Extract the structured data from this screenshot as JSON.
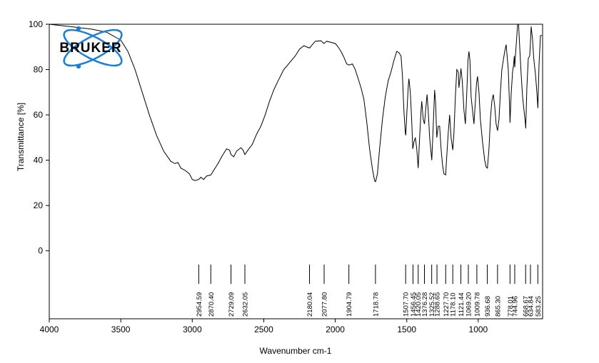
{
  "chart_data": {
    "type": "line",
    "title": "",
    "xlabel": "Wavenumber cm-1",
    "ylabel": "Transmittance [%]",
    "xlim": [
      4000,
      550
    ],
    "ylim": [
      -30,
      100
    ],
    "x_ticks": [
      4000,
      3500,
      3000,
      2500,
      2000,
      1500,
      1000
    ],
    "y_ticks": [
      0,
      20,
      40,
      60,
      80,
      100
    ],
    "grid": false,
    "logo": "BRUKER",
    "peak_labels": [
      "2954.59",
      "2870.40",
      "2729.09",
      "2632.05",
      "2180.04",
      "2077.80",
      "1904.79",
      "1718.78",
      "1507.70",
      "1456.45",
      "1420.05",
      "1376.28",
      "1325.52",
      "1288.65",
      "1227.70",
      "1178.10",
      "1121.44",
      "1069.20",
      "1009.78",
      "936.68",
      "865.30",
      "778.01",
      "744.96",
      "668.67",
      "634.84",
      "583.25"
    ],
    "series": [
      {
        "color": "#000000",
        "points": [
          [
            4000,
            100
          ],
          [
            3900,
            99.3
          ],
          [
            3800,
            98.6
          ],
          [
            3700,
            97.8
          ],
          [
            3600,
            96.5
          ],
          [
            3500,
            93
          ],
          [
            3450,
            88
          ],
          [
            3400,
            80
          ],
          [
            3350,
            70
          ],
          [
            3300,
            60
          ],
          [
            3250,
            51
          ],
          [
            3200,
            44
          ],
          [
            3150,
            39.5
          ],
          [
            3120,
            38.5
          ],
          [
            3100,
            39
          ],
          [
            3080,
            36.5
          ],
          [
            3050,
            35.5
          ],
          [
            3020,
            34
          ],
          [
            3000,
            31.5
          ],
          [
            2980,
            31
          ],
          [
            2954,
            31.5
          ],
          [
            2940,
            32.5
          ],
          [
            2920,
            31.5
          ],
          [
            2900,
            33
          ],
          [
            2870,
            33.5
          ],
          [
            2850,
            35.5
          ],
          [
            2820,
            38.5
          ],
          [
            2790,
            42
          ],
          [
            2760,
            45
          ],
          [
            2740,
            44.5
          ],
          [
            2729,
            42.5
          ],
          [
            2710,
            41.5
          ],
          [
            2690,
            44
          ],
          [
            2660,
            45.5
          ],
          [
            2645,
            44.5
          ],
          [
            2632,
            42.5
          ],
          [
            2610,
            44.5
          ],
          [
            2580,
            47
          ],
          [
            2550,
            51.5
          ],
          [
            2520,
            55
          ],
          [
            2490,
            60
          ],
          [
            2460,
            66
          ],
          [
            2430,
            71
          ],
          [
            2400,
            75
          ],
          [
            2360,
            80
          ],
          [
            2320,
            83
          ],
          [
            2280,
            86
          ],
          [
            2250,
            89
          ],
          [
            2220,
            90.5
          ],
          [
            2200,
            90
          ],
          [
            2180,
            89.5
          ],
          [
            2160,
            91
          ],
          [
            2140,
            92.5
          ],
          [
            2100,
            92.7
          ],
          [
            2080,
            91.5
          ],
          [
            2060,
            92.5
          ],
          [
            2030,
            92
          ],
          [
            2000,
            91.5
          ],
          [
            1980,
            90
          ],
          [
            1960,
            88
          ],
          [
            1940,
            85.5
          ],
          [
            1920,
            82.5
          ],
          [
            1904,
            82
          ],
          [
            1880,
            82.5
          ],
          [
            1860,
            80
          ],
          [
            1840,
            76
          ],
          [
            1820,
            72
          ],
          [
            1800,
            67
          ],
          [
            1780,
            57
          ],
          [
            1760,
            45
          ],
          [
            1740,
            36
          ],
          [
            1725,
            31
          ],
          [
            1718,
            30.5
          ],
          [
            1705,
            34
          ],
          [
            1690,
            45
          ],
          [
            1670,
            58
          ],
          [
            1650,
            68
          ],
          [
            1630,
            75
          ],
          [
            1610,
            79
          ],
          [
            1590,
            84
          ],
          [
            1570,
            88
          ],
          [
            1555,
            87.5
          ],
          [
            1540,
            86
          ],
          [
            1530,
            77
          ],
          [
            1520,
            62
          ],
          [
            1510,
            52
          ],
          [
            1507,
            51
          ],
          [
            1500,
            60
          ],
          [
            1490,
            72
          ],
          [
            1485,
            76
          ],
          [
            1475,
            70
          ],
          [
            1465,
            57
          ],
          [
            1458,
            45
          ],
          [
            1450,
            48
          ],
          [
            1440,
            50
          ],
          [
            1430,
            45
          ],
          [
            1420,
            36.5
          ],
          [
            1410,
            50
          ],
          [
            1400,
            62
          ],
          [
            1395,
            66
          ],
          [
            1385,
            58
          ],
          [
            1376,
            56
          ],
          [
            1368,
            62
          ],
          [
            1358,
            69
          ],
          [
            1350,
            62
          ],
          [
            1340,
            50
          ],
          [
            1325,
            40
          ],
          [
            1315,
            55
          ],
          [
            1305,
            71
          ],
          [
            1298,
            65
          ],
          [
            1290,
            50
          ],
          [
            1280,
            55
          ],
          [
            1270,
            55
          ],
          [
            1260,
            45
          ],
          [
            1250,
            38
          ],
          [
            1240,
            34
          ],
          [
            1228,
            33.5
          ],
          [
            1220,
            42
          ],
          [
            1210,
            52
          ],
          [
            1200,
            60
          ],
          [
            1190,
            50
          ],
          [
            1178,
            44.5
          ],
          [
            1170,
            52
          ],
          [
            1160,
            68
          ],
          [
            1150,
            80
          ],
          [
            1140,
            79
          ],
          [
            1135,
            72
          ],
          [
            1128,
            76
          ],
          [
            1121,
            80.5
          ],
          [
            1112,
            75
          ],
          [
            1100,
            62
          ],
          [
            1090,
            56
          ],
          [
            1080,
            70
          ],
          [
            1072,
            84
          ],
          [
            1065,
            88
          ],
          [
            1058,
            84
          ],
          [
            1050,
            68
          ],
          [
            1040,
            62
          ],
          [
            1030,
            56
          ],
          [
            1020,
            66
          ],
          [
            1012,
            74
          ],
          [
            1005,
            77
          ],
          [
            995,
            70
          ],
          [
            985,
            58
          ],
          [
            970,
            48
          ],
          [
            955,
            40
          ],
          [
            945,
            37
          ],
          [
            936,
            36.5
          ],
          [
            925,
            45
          ],
          [
            915,
            58
          ],
          [
            905,
            66
          ],
          [
            895,
            69
          ],
          [
            885,
            64
          ],
          [
            875,
            56
          ],
          [
            865,
            53
          ],
          [
            855,
            58
          ],
          [
            845,
            70
          ],
          [
            835,
            80
          ],
          [
            825,
            84
          ],
          [
            815,
            88
          ],
          [
            805,
            91
          ],
          [
            790,
            80
          ],
          [
            780,
            62
          ],
          [
            778,
            56.5
          ],
          [
            770,
            69
          ],
          [
            760,
            79
          ],
          [
            753,
            82
          ],
          [
            748,
            86
          ],
          [
            745,
            81
          ],
          [
            740,
            86
          ],
          [
            730,
            95
          ],
          [
            725,
            100
          ],
          [
            718,
            100
          ],
          [
            710,
            90
          ],
          [
            700,
            78
          ],
          [
            690,
            68
          ],
          [
            680,
            62
          ],
          [
            670,
            56
          ],
          [
            668,
            54
          ],
          [
            660,
            72
          ],
          [
            650,
            85
          ],
          [
            640,
            86
          ],
          [
            635,
            92
          ],
          [
            630,
            99
          ],
          [
            620,
            93
          ],
          [
            612,
            85
          ],
          [
            600,
            78
          ],
          [
            590,
            70
          ],
          [
            583,
            63
          ],
          [
            575,
            82
          ],
          [
            565,
            95
          ],
          [
            555,
            95
          ]
        ]
      }
    ]
  }
}
